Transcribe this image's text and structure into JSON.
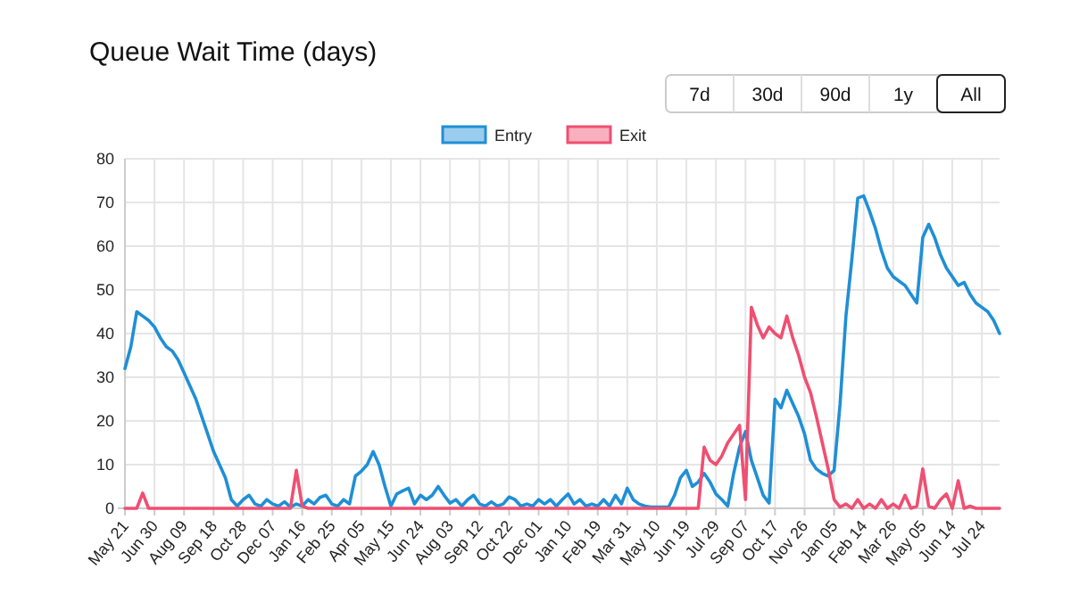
{
  "chart_data": {
    "type": "line",
    "title": "Queue Wait Time (days)",
    "annotations": [
      "7d",
      "30d",
      "90d",
      "1y",
      "All"
    ],
    "categories": [
      "May 21",
      null,
      null,
      null,
      null,
      "Jun 30",
      null,
      null,
      null,
      null,
      "Aug 09",
      null,
      null,
      null,
      null,
      "Sep 18",
      null,
      null,
      null,
      null,
      "Oct 28",
      null,
      null,
      null,
      null,
      "Dec 07",
      null,
      null,
      null,
      null,
      "Jan 16",
      null,
      null,
      null,
      null,
      "Feb 25",
      null,
      null,
      null,
      null,
      "Apr 05",
      null,
      null,
      null,
      null,
      "May 15",
      null,
      null,
      null,
      null,
      "Jun 24",
      null,
      null,
      null,
      null,
      "Aug 03",
      null,
      null,
      null,
      null,
      "Sep 12",
      null,
      null,
      null,
      null,
      "Oct 22",
      null,
      null,
      null,
      null,
      "Dec 01",
      null,
      null,
      null,
      null,
      "Jan 10",
      null,
      null,
      null,
      null,
      "Feb 19",
      null,
      null,
      null,
      null,
      "Mar 31",
      null,
      null,
      null,
      null,
      "May 10",
      null,
      null,
      null,
      null,
      "Jun 19",
      null,
      null,
      null,
      null,
      "Jul 29",
      null,
      null,
      null,
      null,
      "Sep 07",
      null,
      null,
      null,
      null,
      "Oct 17",
      null,
      null,
      null,
      null,
      "Nov 26",
      null,
      null,
      null,
      null,
      "Jan 05",
      null,
      null,
      null,
      null,
      "Feb 14",
      null,
      null,
      null,
      null,
      "Mar 26",
      null,
      null,
      null,
      null,
      "May 05",
      null,
      null,
      null,
      null,
      "Jun 14",
      null,
      null,
      null,
      null,
      "Jul 24",
      null,
      null,
      null
    ],
    "ylim": [
      0,
      80
    ],
    "yticks": [
      0,
      10,
      20,
      30,
      40,
      50,
      60,
      70,
      80
    ],
    "grid": true,
    "legend": "top",
    "marker": "none",
    "line_style": "solid",
    "series": [
      {
        "name": "Entry",
        "color": "#1f8fd6",
        "values": [
          32,
          37,
          45,
          44,
          43,
          41.5,
          39,
          37,
          36,
          34,
          31,
          28,
          25,
          21,
          17,
          13,
          10,
          7,
          2,
          0.5,
          2,
          3,
          1,
          0.5,
          2,
          1,
          0.5,
          1.5,
          0.3,
          1,
          0.5,
          2,
          1,
          2.5,
          3,
          1,
          0.5,
          2,
          1,
          7.4,
          8.5,
          10,
          13,
          10,
          5,
          0.5,
          3.3,
          4,
          4.6,
          1,
          3,
          2,
          3,
          5,
          3,
          1.2,
          2,
          0.5,
          2,
          3,
          1,
          0.5,
          1.5,
          0.5,
          1,
          2.6,
          2,
          0.5,
          1,
          0.5,
          2,
          1,
          2,
          0.5,
          2,
          3.3,
          1,
          2,
          0.5,
          1,
          0.5,
          2,
          0.5,
          3,
          1,
          4.6,
          2,
          1,
          0.5,
          0.3,
          0.3,
          0.3,
          0.3,
          3,
          7,
          8.7,
          5,
          6,
          8,
          6,
          3.3,
          2,
          0.5,
          8,
          14,
          17.6,
          11,
          7,
          3,
          1.2,
          25,
          23,
          27,
          24,
          21,
          17,
          11,
          9,
          8,
          7.4,
          8.7,
          23.8,
          44,
          57,
          71,
          71.5,
          68,
          64,
          59,
          55,
          53,
          52,
          51,
          49,
          47,
          62,
          65,
          62,
          58,
          55,
          53,
          51,
          51.7,
          49,
          47,
          46,
          45,
          43,
          40
        ]
      },
      {
        "name": "Exit",
        "color": "#ef4f72",
        "values": [
          0,
          0,
          0,
          3.5,
          0,
          0,
          0,
          0,
          0,
          0,
          0,
          0,
          0,
          0,
          0,
          0,
          0,
          0,
          0,
          0,
          0,
          0,
          0,
          0,
          0,
          0,
          0,
          0,
          0,
          8.7,
          0.5,
          0,
          0,
          0,
          0,
          0,
          0,
          0,
          0,
          0,
          0,
          0,
          0,
          0,
          0,
          0,
          0,
          0,
          0,
          0,
          0,
          0,
          0,
          0,
          0,
          0,
          0,
          0,
          0,
          0,
          0,
          0,
          0,
          0,
          0,
          0,
          0,
          0,
          0,
          0,
          0,
          0,
          0,
          0,
          0,
          0,
          0,
          0,
          0,
          0,
          0,
          0,
          0,
          0,
          0,
          0,
          0,
          0,
          0,
          0,
          0,
          0,
          0,
          0,
          0,
          0,
          0,
          0,
          14,
          11,
          10,
          12,
          15,
          17,
          19,
          2,
          46,
          42,
          39,
          41.5,
          40,
          39,
          44,
          39,
          35,
          30,
          26.5,
          21,
          15,
          9,
          2,
          0.3,
          1,
          0,
          2,
          0,
          1,
          0,
          2,
          0,
          1,
          0,
          3,
          0,
          0.5,
          9,
          0.5,
          0,
          2,
          3.3,
          0,
          6.3,
          0,
          0.5,
          0,
          0,
          0,
          0,
          0
        ]
      }
    ]
  }
}
